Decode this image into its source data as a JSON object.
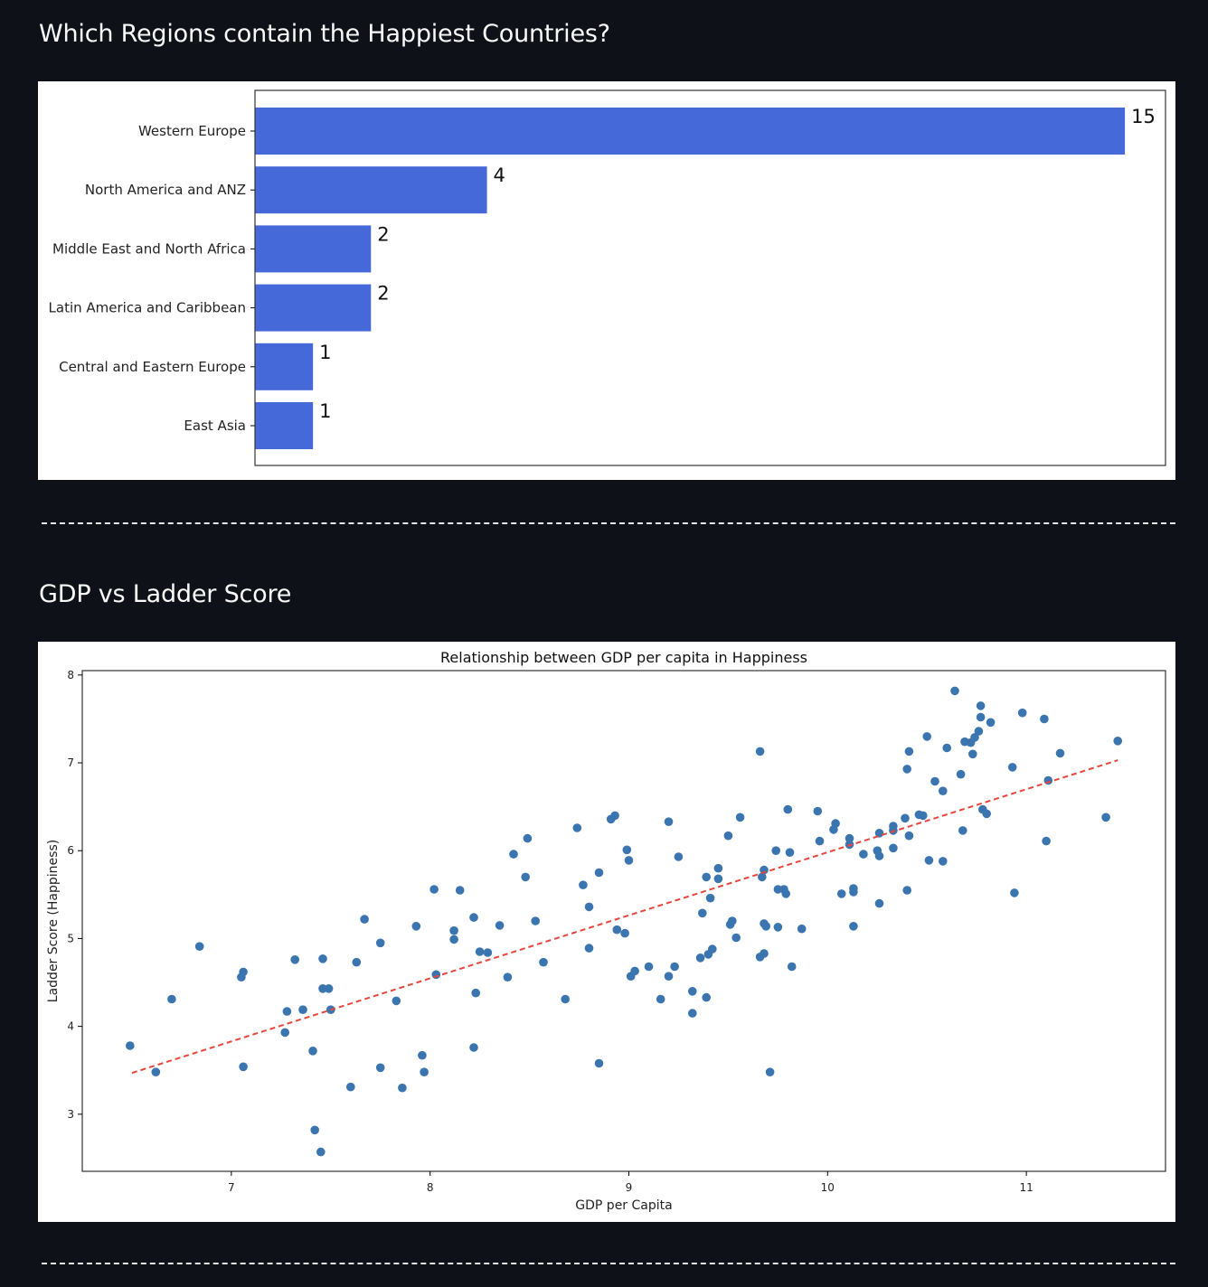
{
  "sections": {
    "regions_title": "Which Regions contain the Happiest Countries?",
    "gdp_title": "GDP vs Ladder Score"
  },
  "chart_data": [
    {
      "type": "bar",
      "orientation": "horizontal",
      "categories": [
        "Western Europe",
        "North America and ANZ",
        "Middle East and North Africa",
        "Latin America and Caribbean",
        "Central and Eastern Europe",
        "East Asia"
      ],
      "values": [
        15,
        4,
        2,
        2,
        1,
        1
      ],
      "data_labels": [
        "15",
        "4",
        "2",
        "2",
        "1",
        "1"
      ],
      "xlim": [
        0,
        15.7
      ],
      "bar_color": "#4569d9",
      "grid": false,
      "x_ticks_visible": false
    },
    {
      "type": "scatter",
      "title": "Relationship between GDP per capita in Happiness",
      "xlabel": "GDP per Capita",
      "ylabel": "Ladder Score (Happiness)",
      "xlim": [
        6.25,
        11.7
      ],
      "ylim": [
        2.35,
        8.05
      ],
      "x_ticks": [
        7,
        8,
        9,
        10,
        11
      ],
      "y_ticks": [
        3,
        4,
        5,
        6,
        7,
        8
      ],
      "point_color": "#3a75b0",
      "trend_line": {
        "x": [
          6.5,
          11.46
        ],
        "y": [
          3.47,
          7.03
        ],
        "color": "#e8453c",
        "style": "dashed"
      },
      "grid": false,
      "points": [
        [
          6.49,
          3.78
        ],
        [
          6.62,
          3.48
        ],
        [
          6.7,
          4.31
        ],
        [
          6.84,
          4.91
        ],
        [
          7.05,
          4.56
        ],
        [
          7.06,
          4.62
        ],
        [
          7.06,
          3.54
        ],
        [
          7.27,
          3.93
        ],
        [
          7.28,
          4.17
        ],
        [
          7.32,
          4.76
        ],
        [
          7.36,
          4.19
        ],
        [
          7.41,
          3.72
        ],
        [
          7.42,
          2.82
        ],
        [
          7.45,
          2.57
        ],
        [
          7.46,
          4.77
        ],
        [
          7.46,
          4.43
        ],
        [
          7.49,
          4.43
        ],
        [
          7.5,
          4.19
        ],
        [
          7.6,
          3.31
        ],
        [
          7.63,
          4.73
        ],
        [
          7.67,
          5.22
        ],
        [
          7.75,
          4.95
        ],
        [
          7.75,
          3.53
        ],
        [
          7.83,
          4.29
        ],
        [
          7.86,
          3.3
        ],
        [
          7.93,
          5.14
        ],
        [
          7.96,
          3.67
        ],
        [
          7.97,
          3.48
        ],
        [
          8.02,
          5.56
        ],
        [
          8.03,
          4.59
        ],
        [
          8.12,
          5.09
        ],
        [
          8.12,
          4.99
        ],
        [
          8.15,
          5.55
        ],
        [
          8.22,
          5.24
        ],
        [
          8.23,
          4.38
        ],
        [
          8.22,
          3.76
        ],
        [
          8.25,
          4.85
        ],
        [
          8.29,
          4.84
        ],
        [
          8.35,
          5.15
        ],
        [
          8.39,
          4.56
        ],
        [
          8.42,
          5.96
        ],
        [
          8.48,
          5.7
        ],
        [
          8.49,
          6.14
        ],
        [
          8.53,
          5.2
        ],
        [
          8.57,
          4.73
        ],
        [
          8.68,
          4.31
        ],
        [
          8.74,
          6.26
        ],
        [
          8.77,
          5.61
        ],
        [
          8.8,
          5.36
        ],
        [
          8.8,
          4.89
        ],
        [
          8.85,
          5.75
        ],
        [
          8.85,
          3.58
        ],
        [
          8.91,
          6.36
        ],
        [
          8.93,
          6.4
        ],
        [
          8.94,
          5.1
        ],
        [
          8.98,
          5.06
        ],
        [
          8.99,
          6.01
        ],
        [
          9.0,
          5.89
        ],
        [
          9.01,
          4.57
        ],
        [
          9.03,
          4.63
        ],
        [
          9.1,
          4.68
        ],
        [
          9.16,
          4.31
        ],
        [
          9.2,
          6.33
        ],
        [
          9.2,
          4.57
        ],
        [
          9.23,
          4.68
        ],
        [
          9.25,
          5.93
        ],
        [
          9.32,
          4.4
        ],
        [
          9.32,
          4.15
        ],
        [
          9.36,
          4.78
        ],
        [
          9.37,
          5.29
        ],
        [
          9.39,
          5.7
        ],
        [
          9.39,
          4.33
        ],
        [
          9.4,
          4.82
        ],
        [
          9.41,
          5.46
        ],
        [
          9.42,
          4.88
        ],
        [
          9.45,
          5.8
        ],
        [
          9.45,
          5.68
        ],
        [
          9.5,
          6.17
        ],
        [
          9.51,
          5.16
        ],
        [
          9.52,
          5.2
        ],
        [
          9.54,
          5.01
        ],
        [
          9.56,
          6.38
        ],
        [
          9.66,
          7.13
        ],
        [
          9.66,
          4.79
        ],
        [
          9.67,
          5.7
        ],
        [
          9.68,
          5.78
        ],
        [
          9.68,
          4.83
        ],
        [
          9.68,
          5.17
        ],
        [
          9.69,
          5.14
        ],
        [
          9.71,
          3.48
        ],
        [
          9.74,
          6.0
        ],
        [
          9.75,
          5.56
        ],
        [
          9.75,
          5.13
        ],
        [
          9.78,
          5.56
        ],
        [
          9.79,
          5.51
        ],
        [
          9.8,
          6.47
        ],
        [
          9.81,
          5.98
        ],
        [
          9.82,
          4.68
        ],
        [
          9.87,
          5.11
        ],
        [
          9.95,
          6.45
        ],
        [
          9.96,
          6.11
        ],
        [
          10.03,
          6.24
        ],
        [
          10.04,
          6.31
        ],
        [
          10.07,
          5.51
        ],
        [
          10.11,
          6.14
        ],
        [
          10.11,
          6.07
        ],
        [
          10.13,
          5.57
        ],
        [
          10.13,
          5.53
        ],
        [
          10.13,
          5.14
        ],
        [
          10.18,
          5.96
        ],
        [
          10.25,
          6.0
        ],
        [
          10.26,
          6.2
        ],
        [
          10.26,
          5.94
        ],
        [
          10.26,
          5.4
        ],
        [
          10.33,
          6.03
        ],
        [
          10.33,
          6.23
        ],
        [
          10.33,
          6.28
        ],
        [
          10.39,
          6.37
        ],
        [
          10.4,
          6.93
        ],
        [
          10.41,
          7.13
        ],
        [
          10.41,
          6.17
        ],
        [
          10.4,
          5.55
        ],
        [
          10.46,
          6.41
        ],
        [
          10.48,
          6.4
        ],
        [
          10.5,
          7.3
        ],
        [
          10.51,
          5.89
        ],
        [
          10.54,
          6.79
        ],
        [
          10.58,
          6.68
        ],
        [
          10.58,
          5.88
        ],
        [
          10.6,
          7.17
        ],
        [
          10.64,
          7.82
        ],
        [
          10.67,
          6.87
        ],
        [
          10.68,
          6.23
        ],
        [
          10.69,
          7.24
        ],
        [
          10.72,
          7.23
        ],
        [
          10.73,
          7.1
        ],
        [
          10.74,
          7.29
        ],
        [
          10.76,
          7.36
        ],
        [
          10.77,
          7.65
        ],
        [
          10.77,
          7.52
        ],
        [
          10.78,
          6.47
        ],
        [
          10.8,
          6.42
        ],
        [
          10.82,
          7.46
        ],
        [
          10.93,
          6.95
        ],
        [
          10.94,
          5.52
        ],
        [
          10.98,
          7.57
        ],
        [
          11.09,
          7.5
        ],
        [
          11.1,
          6.11
        ],
        [
          11.11,
          6.8
        ],
        [
          11.17,
          7.11
        ],
        [
          11.4,
          6.38
        ],
        [
          11.46,
          7.25
        ]
      ]
    }
  ]
}
